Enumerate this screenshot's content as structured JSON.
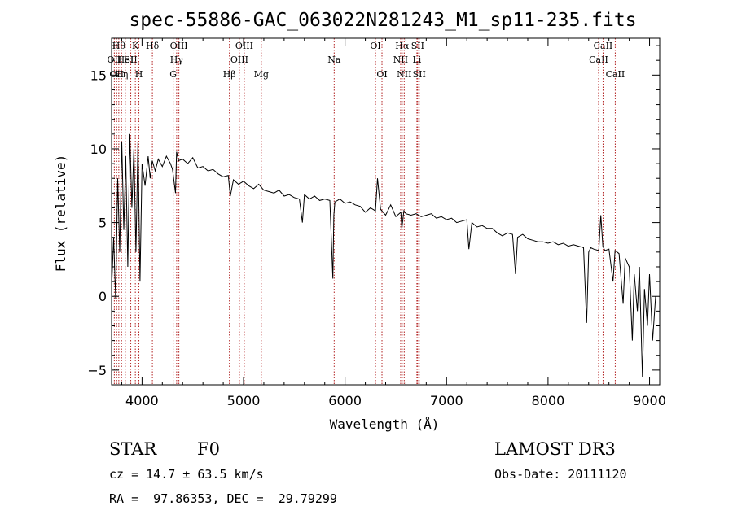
{
  "chart_data": {
    "type": "line",
    "title": "spec-55886-GAC_063022N281243_M1_sp11-235.fits",
    "xlabel": "Wavelength (Å)",
    "ylabel": "Flux (relative)",
    "xlim": [
      3700,
      9100
    ],
    "ylim": [
      -6,
      17.5
    ],
    "x_ticks": [
      4000,
      5000,
      6000,
      7000,
      8000,
      9000
    ],
    "y_ticks": [
      -5,
      0,
      5,
      10,
      15
    ],
    "grid": false,
    "series_color": "#000000",
    "line_marker_color": "#b22222",
    "spectrum": {
      "x": [
        3700,
        3720,
        3740,
        3760,
        3780,
        3800,
        3820,
        3840,
        3860,
        3880,
        3900,
        3920,
        3940,
        3960,
        3980,
        4000,
        4030,
        4060,
        4080,
        4100,
        4130,
        4160,
        4200,
        4240,
        4280,
        4300,
        4330,
        4340,
        4360,
        4400,
        4450,
        4500,
        4550,
        4600,
        4650,
        4700,
        4750,
        4800,
        4850,
        4870,
        4900,
        4950,
        5000,
        5050,
        5100,
        5150,
        5200,
        5250,
        5300,
        5350,
        5400,
        5450,
        5500,
        5550,
        5580,
        5600,
        5650,
        5700,
        5750,
        5800,
        5850,
        5880,
        5890,
        5900,
        5950,
        6000,
        6050,
        6100,
        6150,
        6200,
        6250,
        6300,
        6320,
        6350,
        6400,
        6450,
        6500,
        6550,
        6560,
        6580,
        6600,
        6650,
        6700,
        6750,
        6800,
        6850,
        6900,
        6950,
        7000,
        7050,
        7100,
        7150,
        7200,
        7220,
        7250,
        7300,
        7350,
        7400,
        7450,
        7500,
        7550,
        7600,
        7650,
        7680,
        7700,
        7750,
        7800,
        7850,
        7900,
        7950,
        8000,
        8050,
        8100,
        8150,
        8200,
        8250,
        8300,
        8350,
        8380,
        8400,
        8420,
        8450,
        8500,
        8520,
        8540,
        8560,
        8600,
        8640,
        8660,
        8700,
        8740,
        8760,
        8800,
        8830,
        8850,
        8880,
        8900,
        8930,
        8950,
        8980,
        9000,
        9030,
        9060
      ],
      "y": [
        0.5,
        4.0,
        -0.2,
        8.0,
        3.0,
        10.5,
        4.5,
        9.5,
        2.0,
        11.0,
        6.0,
        10.0,
        3.0,
        10.5,
        1.0,
        9.0,
        7.5,
        9.5,
        8.0,
        9.2,
        8.5,
        9.3,
        8.8,
        9.5,
        9.0,
        8.6,
        7.0,
        9.8,
        9.2,
        9.3,
        9.0,
        9.4,
        8.7,
        8.8,
        8.5,
        8.6,
        8.3,
        8.1,
        8.2,
        6.8,
        7.9,
        7.6,
        7.8,
        7.5,
        7.3,
        7.6,
        7.2,
        7.1,
        7.0,
        7.2,
        6.8,
        6.9,
        6.7,
        6.6,
        5.0,
        6.9,
        6.6,
        6.8,
        6.5,
        6.6,
        6.5,
        1.2,
        5.5,
        6.4,
        6.6,
        6.3,
        6.4,
        6.2,
        6.1,
        5.7,
        6.0,
        5.8,
        8.0,
        5.9,
        5.5,
        6.2,
        5.4,
        5.7,
        4.6,
        5.8,
        5.6,
        5.5,
        5.6,
        5.4,
        5.5,
        5.6,
        5.3,
        5.4,
        5.2,
        5.3,
        5.0,
        5.1,
        5.2,
        3.2,
        5.0,
        4.7,
        4.8,
        4.6,
        4.6,
        4.3,
        4.1,
        4.3,
        4.2,
        1.5,
        4.0,
        4.2,
        3.9,
        3.8,
        3.7,
        3.7,
        3.6,
        3.7,
        3.5,
        3.6,
        3.4,
        3.5,
        3.4,
        3.3,
        -1.8,
        3.0,
        3.3,
        3.2,
        3.1,
        5.5,
        3.4,
        3.1,
        3.2,
        1.0,
        3.1,
        2.9,
        -0.5,
        2.6,
        2.0,
        -3.0,
        1.5,
        -1.0,
        2.0,
        -5.5,
        0.5,
        -2.0,
        1.5,
        -3.0,
        0.0
      ]
    },
    "spectral_lines": [
      {
        "x": 3727,
        "label": "OII",
        "row": 2
      },
      {
        "x": 3750,
        "label": "OII",
        "row": 3
      },
      {
        "x": 3771,
        "label": "Hθ",
        "row": 1
      },
      {
        "x": 3798,
        "label": "Hη",
        "row": 3
      },
      {
        "x": 3835,
        "label": "HeI",
        "row": 2
      },
      {
        "x": 3889,
        "label": "SII",
        "row": 2
      },
      {
        "x": 3934,
        "label": "K",
        "row": 1
      },
      {
        "x": 3969,
        "label": "H",
        "row": 3
      },
      {
        "x": 4102,
        "label": "Hδ",
        "row": 1
      },
      {
        "x": 4307,
        "label": "G",
        "row": 3
      },
      {
        "x": 4341,
        "label": "Hγ",
        "row": 2
      },
      {
        "x": 4363,
        "label": "OIII",
        "row": 1
      },
      {
        "x": 4861,
        "label": "Hβ",
        "row": 3
      },
      {
        "x": 4959,
        "label": "OIII",
        "row": 2
      },
      {
        "x": 5007,
        "label": "OIII",
        "row": 1
      },
      {
        "x": 5175,
        "label": "Mg",
        "row": 3
      },
      {
        "x": 5893,
        "label": "Na",
        "row": 2
      },
      {
        "x": 6300,
        "label": "OI",
        "row": 1
      },
      {
        "x": 6364,
        "label": "OI",
        "row": 3
      },
      {
        "x": 6548,
        "label": "NII",
        "row": 2
      },
      {
        "x": 6563,
        "label": "Hα",
        "row": 1
      },
      {
        "x": 6583,
        "label": "NII",
        "row": 3
      },
      {
        "x": 6708,
        "label": "Li",
        "row": 2
      },
      {
        "x": 6716,
        "label": "SII",
        "row": 1
      },
      {
        "x": 6731,
        "label": "SII",
        "row": 3
      },
      {
        "x": 8498,
        "label": "CaII",
        "row": 2
      },
      {
        "x": 8542,
        "label": "CaII",
        "row": 1
      },
      {
        "x": 8662,
        "label": "CaII",
        "row": 3
      }
    ]
  },
  "info": {
    "object_class": "STAR",
    "subclass": "F0",
    "survey": "LAMOST DR3",
    "cz": "cz = 14.7 ± 63.5 km/s",
    "obs_date": "Obs-Date: 20111120",
    "coords": "RA =  97.86353, DEC =  29.79299"
  }
}
